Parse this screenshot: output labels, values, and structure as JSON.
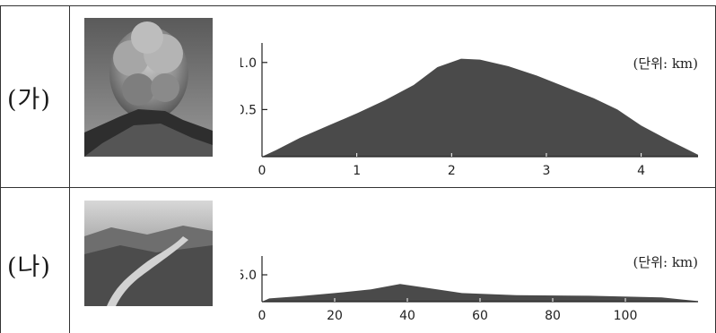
{
  "rows": [
    {
      "label": "(가)",
      "photo_icon": "volcano-eruption-photo",
      "chart_data": {
        "type": "area",
        "unit": "(단위: km)",
        "x_ticks": [
          "0",
          "1",
          "2",
          "3",
          "4"
        ],
        "y_ticks": [
          "0.5",
          "1.0"
        ],
        "xlim": [
          0,
          4.6
        ],
        "ylim": [
          0,
          1.15
        ],
        "profile": [
          [
            0,
            0
          ],
          [
            0.15,
            0.07
          ],
          [
            0.4,
            0.2
          ],
          [
            0.7,
            0.33
          ],
          [
            1.0,
            0.46
          ],
          [
            1.3,
            0.6
          ],
          [
            1.6,
            0.76
          ],
          [
            1.85,
            0.95
          ],
          [
            2.1,
            1.04
          ],
          [
            2.3,
            1.03
          ],
          [
            2.6,
            0.96
          ],
          [
            2.9,
            0.86
          ],
          [
            3.2,
            0.74
          ],
          [
            3.5,
            0.62
          ],
          [
            3.75,
            0.5
          ],
          [
            4.0,
            0.33
          ],
          [
            4.3,
            0.17
          ],
          [
            4.6,
            0.02
          ]
        ],
        "fill_color": "#4a4a4a"
      }
    },
    {
      "label": "(나)",
      "photo_icon": "river-valley-photo",
      "chart_data": {
        "type": "area",
        "unit": "(단위: km)",
        "x_ticks": [
          "0",
          "20",
          "40",
          "60",
          "80",
          "100"
        ],
        "y_ticks": [
          "5.0"
        ],
        "xlim": [
          0,
          120
        ],
        "ylim": [
          0,
          7.5
        ],
        "profile": [
          [
            0,
            0
          ],
          [
            2,
            0.6
          ],
          [
            10,
            1.0
          ],
          [
            20,
            1.6
          ],
          [
            30,
            2.3
          ],
          [
            38,
            3.3
          ],
          [
            45,
            2.6
          ],
          [
            55,
            1.6
          ],
          [
            70,
            1.2
          ],
          [
            90,
            1.1
          ],
          [
            110,
            0.8
          ],
          [
            120,
            0.1
          ]
        ],
        "fill_color": "#4a4a4a"
      }
    }
  ]
}
